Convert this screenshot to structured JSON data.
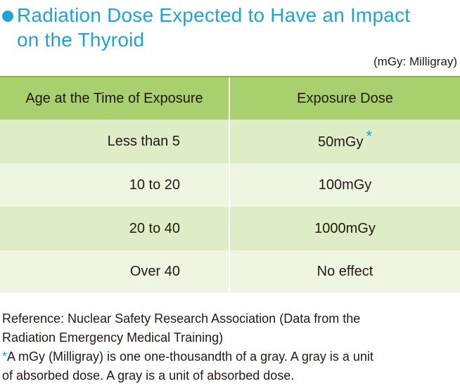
{
  "title": {
    "line1": "Radiation Dose Expected to Have an Impact",
    "line2": "on the Thyroid"
  },
  "unit_note": "(mGy: Milligray)",
  "table": {
    "headers": [
      "Age at the Time of Exposure",
      "Exposure Dose"
    ],
    "rows": [
      {
        "age": "Less than 5",
        "dose": "50mGy",
        "asterisk": "*"
      },
      {
        "age": "10 to 20",
        "dose": "100mGy"
      },
      {
        "age": "20 to 40",
        "dose": "1000mGy"
      },
      {
        "age": "Over 40",
        "dose": "No effect"
      }
    ]
  },
  "footer": {
    "reference_line1": "Reference: Nuclear Safety Research Association (Data from the",
    "reference_line2": "Radiation Emergency Medical Training)",
    "note_asterisk": "*",
    "note_line1": "A mGy (Milligray) is one one-thousandth of a gray. A gray is a unit",
    "note_line2": "of absorbed dose. A gray is a unit of absorbed dose."
  },
  "colors": {
    "title": "#1aa4d9",
    "header_bg": "#a9d06e",
    "row_dark": "#dfedc6",
    "row_light": "#eef5e1"
  }
}
